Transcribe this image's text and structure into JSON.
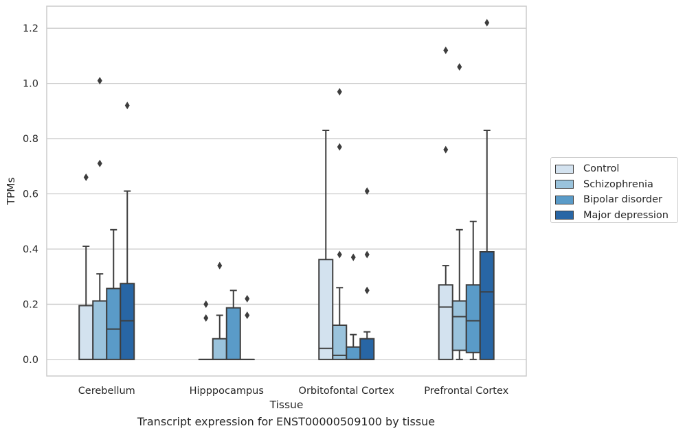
{
  "caption": "Transcript expression for ENST00000509100 by tissue",
  "chart_data": {
    "type": "box",
    "xlabel": "Tissue",
    "ylabel": "TPMs",
    "ylim": [
      -0.06,
      1.28
    ],
    "yticks": [
      0.0,
      0.2,
      0.4,
      0.6,
      0.8,
      1.0,
      1.2
    ],
    "ytick_labels": [
      "0.0",
      "0.2",
      "0.4",
      "0.6",
      "0.8",
      "1.0",
      "1.2"
    ],
    "grid": "horizontal",
    "legend_position": "right",
    "categories": [
      "Cerebellum",
      "Hipppocampus",
      "Orbitofontal Cortex",
      "Prefrontal Cortex"
    ],
    "series": [
      {
        "name": "Control",
        "color": "#d3e2ef",
        "boxes": [
          {
            "whislo": 0.0,
            "q1": 0.0,
            "med": 0.0,
            "q3": 0.195,
            "whishi": 0.41,
            "fliers": [
              0.66
            ]
          },
          {
            "whislo": 0.0,
            "q1": 0.0,
            "med": 0.0,
            "q3": 0.0,
            "whishi": 0.0,
            "fliers": [
              0.15,
              0.2
            ]
          },
          {
            "whislo": 0.0,
            "q1": 0.0,
            "med": 0.04,
            "q3": 0.362,
            "whishi": 0.83,
            "fliers": []
          },
          {
            "whislo": 0.0,
            "q1": 0.0,
            "med": 0.19,
            "q3": 0.27,
            "whishi": 0.34,
            "fliers": [
              0.76,
              1.12
            ]
          }
        ]
      },
      {
        "name": "Schizophrenia",
        "color": "#9ac3dc",
        "boxes": [
          {
            "whislo": 0.0,
            "q1": 0.0,
            "med": 0.0,
            "q3": 0.212,
            "whishi": 0.31,
            "fliers": [
              0.71,
              1.01
            ]
          },
          {
            "whislo": 0.0,
            "q1": 0.0,
            "med": 0.0,
            "q3": 0.075,
            "whishi": 0.16,
            "fliers": [
              0.34
            ]
          },
          {
            "whislo": 0.0,
            "q1": 0.0,
            "med": 0.015,
            "q3": 0.124,
            "whishi": 0.26,
            "fliers": [
              0.38,
              0.77,
              0.97
            ]
          },
          {
            "whislo": 0.0,
            "q1": 0.033,
            "med": 0.155,
            "q3": 0.212,
            "whishi": 0.47,
            "fliers": [
              1.06
            ]
          }
        ]
      },
      {
        "name": "Bipolar disorder",
        "color": "#5a9bc8",
        "boxes": [
          {
            "whislo": 0.0,
            "q1": 0.0,
            "med": 0.11,
            "q3": 0.257,
            "whishi": 0.47,
            "fliers": []
          },
          {
            "whislo": 0.0,
            "q1": 0.0,
            "med": 0.0,
            "q3": 0.187,
            "whishi": 0.25,
            "fliers": []
          },
          {
            "whislo": 0.0,
            "q1": 0.0,
            "med": 0.0,
            "q3": 0.045,
            "whishi": 0.09,
            "fliers": [
              0.37
            ]
          },
          {
            "whislo": 0.0,
            "q1": 0.025,
            "med": 0.14,
            "q3": 0.27,
            "whishi": 0.5,
            "fliers": []
          }
        ]
      },
      {
        "name": "Major depression",
        "color": "#2866a5",
        "boxes": [
          {
            "whislo": 0.0,
            "q1": 0.0,
            "med": 0.14,
            "q3": 0.275,
            "whishi": 0.61,
            "fliers": [
              0.92
            ]
          },
          {
            "whislo": 0.0,
            "q1": 0.0,
            "med": 0.0,
            "q3": 0.0,
            "whishi": 0.0,
            "fliers": [
              0.16,
              0.22
            ]
          },
          {
            "whislo": 0.0,
            "q1": 0.0,
            "med": 0.0,
            "q3": 0.075,
            "whishi": 0.1,
            "fliers": [
              0.25,
              0.38,
              0.61
            ]
          },
          {
            "whislo": 0.0,
            "q1": 0.0,
            "med": 0.245,
            "q3": 0.39,
            "whishi": 0.83,
            "fliers": [
              1.22
            ]
          }
        ]
      }
    ]
  }
}
